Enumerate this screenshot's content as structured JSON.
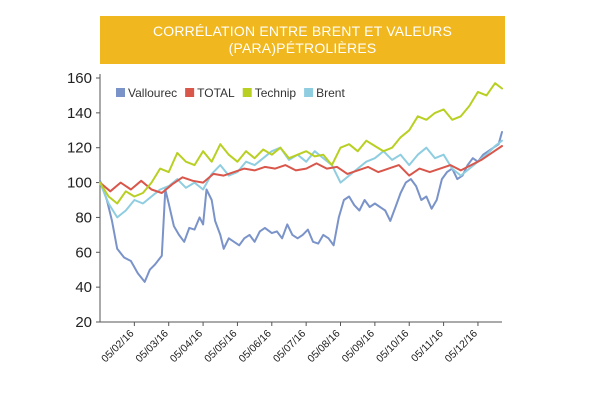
{
  "chart_data": {
    "type": "line",
    "title_lines": [
      "CORRÉLATION ENTRE BRENT ET VALEURS",
      "(PARA)PÉTROLIÈRES"
    ],
    "xlabel": "",
    "ylabel": "",
    "ylim": [
      20,
      160
    ],
    "yticks": [
      20,
      40,
      60,
      80,
      100,
      120,
      140,
      160
    ],
    "xlim": [
      0,
      11.7
    ],
    "x_tick_labels": [
      "05/02/16",
      "05/03/16",
      "05/04/16",
      "05/05/16",
      "05/06/16",
      "05/07/16",
      "05/08/16",
      "05/09/16",
      "05/10/16",
      "05/11/16",
      "05/12/16"
    ],
    "x_tick_positions": [
      1,
      2,
      3,
      4,
      5,
      6,
      7,
      8,
      9,
      10,
      11
    ],
    "legend_position": "top-left",
    "grid": false,
    "series": [
      {
        "name": "Vallourec",
        "color": "#7a93c9",
        "x": [
          0,
          0.2,
          0.35,
          0.5,
          0.7,
          0.9,
          1.1,
          1.3,
          1.45,
          1.6,
          1.8,
          1.9,
          2.0,
          2.15,
          2.3,
          2.45,
          2.6,
          2.75,
          2.9,
          3.0,
          3.1,
          3.25,
          3.35,
          3.5,
          3.6,
          3.75,
          3.9,
          4.05,
          4.2,
          4.35,
          4.5,
          4.65,
          4.8,
          5.0,
          5.15,
          5.3,
          5.45,
          5.6,
          5.75,
          5.9,
          6.05,
          6.2,
          6.35,
          6.5,
          6.65,
          6.8,
          6.95,
          7.1,
          7.25,
          7.4,
          7.55,
          7.7,
          7.85,
          8.0,
          8.15,
          8.3,
          8.45,
          8.6,
          8.75,
          8.9,
          9.05,
          9.2,
          9.35,
          9.5,
          9.65,
          9.8,
          9.95,
          10.1,
          10.25,
          10.4,
          10.55,
          10.7,
          10.85,
          11.0,
          11.15,
          11.3,
          11.45,
          11.6,
          11.7
        ],
        "values": [
          101,
          90,
          78,
          62,
          57,
          55,
          48,
          43,
          50,
          53,
          58,
          96,
          88,
          75,
          70,
          66,
          74,
          73,
          80,
          76,
          96,
          90,
          78,
          70,
          62,
          68,
          66,
          64,
          68,
          70,
          66,
          72,
          74,
          71,
          72,
          68,
          76,
          70,
          68,
          70,
          73,
          66,
          65,
          70,
          68,
          64,
          80,
          90,
          92,
          87,
          84,
          90,
          86,
          88,
          86,
          84,
          78,
          86,
          94,
          100,
          102,
          98,
          90,
          92,
          85,
          90,
          102,
          106,
          108,
          102,
          104,
          110,
          114,
          112,
          116,
          118,
          120,
          122,
          129
        ]
      },
      {
        "name": "TOTAL",
        "color": "#d9564b",
        "x": [
          0,
          0.3,
          0.6,
          0.9,
          1.2,
          1.5,
          1.8,
          2.1,
          2.4,
          2.7,
          3.0,
          3.3,
          3.6,
          3.9,
          4.2,
          4.5,
          4.8,
          5.1,
          5.4,
          5.7,
          6.0,
          6.3,
          6.6,
          6.9,
          7.2,
          7.5,
          7.8,
          8.1,
          8.4,
          8.7,
          9.0,
          9.3,
          9.6,
          9.9,
          10.2,
          10.5,
          10.8,
          11.1,
          11.4,
          11.7
        ],
        "values": [
          100,
          95,
          100,
          96,
          101,
          96,
          94,
          99,
          103,
          101,
          100,
          105,
          104,
          106,
          108,
          107,
          109,
          108,
          110,
          107,
          108,
          111,
          108,
          109,
          105,
          107,
          109,
          106,
          108,
          110,
          104,
          108,
          106,
          108,
          110,
          107,
          110,
          113,
          117,
          121
        ]
      },
      {
        "name": "Technip",
        "color": "#b9cf22",
        "x": [
          0,
          0.25,
          0.5,
          0.75,
          1.0,
          1.25,
          1.5,
          1.75,
          2.0,
          2.25,
          2.5,
          2.75,
          3.0,
          3.25,
          3.5,
          3.75,
          4.0,
          4.25,
          4.5,
          4.75,
          5.0,
          5.25,
          5.5,
          5.75,
          6.0,
          6.25,
          6.5,
          6.75,
          7.0,
          7.25,
          7.5,
          7.75,
          8.0,
          8.25,
          8.5,
          8.75,
          9.0,
          9.25,
          9.5,
          9.75,
          10.0,
          10.25,
          10.5,
          10.75,
          11.0,
          11.25,
          11.5,
          11.7
        ],
        "values": [
          100,
          92,
          88,
          95,
          92,
          94,
          100,
          108,
          106,
          117,
          112,
          110,
          118,
          112,
          122,
          116,
          112,
          118,
          114,
          119,
          116,
          120,
          114,
          116,
          118,
          115,
          116,
          110,
          120,
          122,
          118,
          124,
          121,
          118,
          120,
          126,
          130,
          138,
          136,
          140,
          142,
          136,
          138,
          144,
          152,
          150,
          157,
          154
        ]
      },
      {
        "name": "Brent",
        "color": "#8fcde0",
        "x": [
          0,
          0.25,
          0.5,
          0.75,
          1.0,
          1.25,
          1.5,
          1.75,
          2.0,
          2.25,
          2.5,
          2.75,
          3.0,
          3.25,
          3.5,
          3.75,
          4.0,
          4.25,
          4.5,
          4.75,
          5.0,
          5.25,
          5.5,
          5.75,
          6.0,
          6.25,
          6.5,
          6.75,
          7.0,
          7.25,
          7.5,
          7.75,
          8.0,
          8.25,
          8.5,
          8.75,
          9.0,
          9.25,
          9.5,
          9.75,
          10.0,
          10.25,
          10.5,
          10.75,
          11.0,
          11.25,
          11.5,
          11.7
        ],
        "values": [
          100,
          88,
          80,
          84,
          90,
          88,
          92,
          96,
          98,
          102,
          97,
          100,
          96,
          105,
          110,
          104,
          106,
          112,
          110,
          114,
          118,
          120,
          113,
          116,
          112,
          118,
          114,
          110,
          100,
          104,
          108,
          112,
          114,
          118,
          113,
          116,
          110,
          116,
          120,
          114,
          116,
          108,
          104,
          108,
          112,
          116,
          121,
          124
        ]
      }
    ]
  }
}
